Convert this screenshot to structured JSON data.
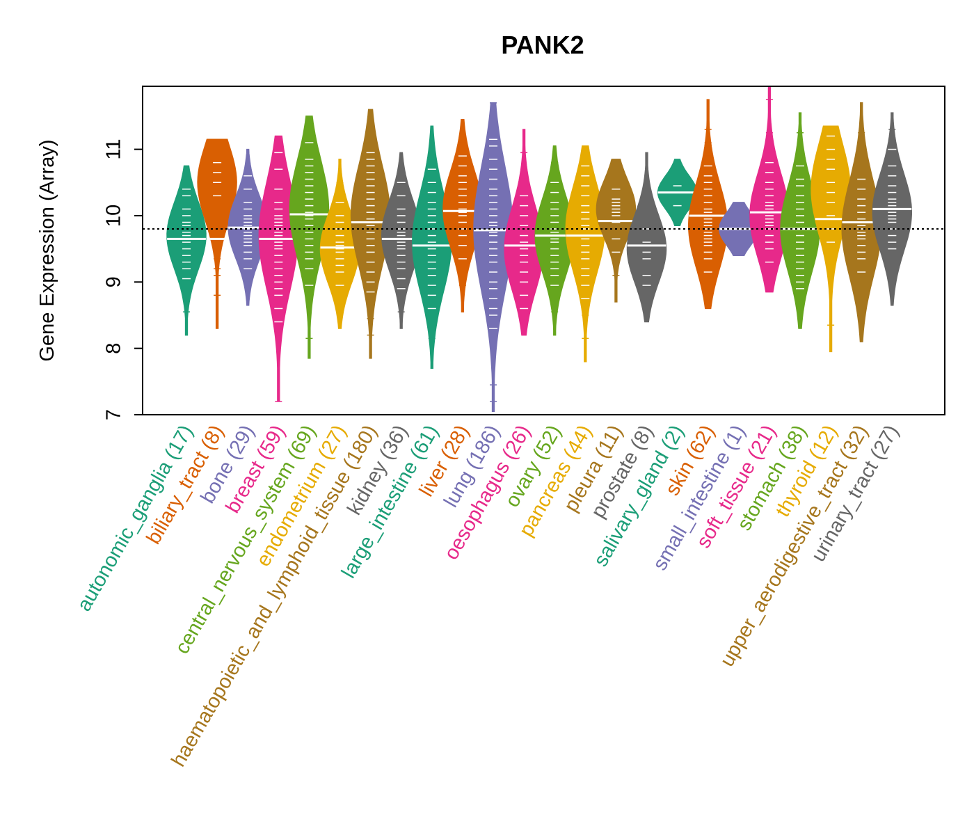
{
  "chart_data": {
    "type": "beanplot",
    "title": "PANK2",
    "ylabel": "Gene Expression (Array)",
    "xlabel": "",
    "ylim": [
      7,
      11.95
    ],
    "yticks": [
      7,
      8,
      9,
      10,
      11
    ],
    "reference_line": 9.8,
    "categories": [
      {
        "name": "autonomic_ganglia",
        "n": 17,
        "color": "#1B9E77",
        "min": 8.2,
        "max": 10.75,
        "median": 9.65,
        "mode": 9.7,
        "marks": [
          8.55,
          9.05,
          9.2,
          9.3,
          9.4,
          9.5,
          9.6,
          9.65,
          9.7,
          9.75,
          9.85,
          9.9,
          10.0,
          10.1,
          10.3,
          10.4,
          10.6
        ]
      },
      {
        "name": "biliary_tract",
        "n": 8,
        "color": "#D95F02",
        "min": 8.3,
        "max": 11.15,
        "median": 9.65,
        "mode": 10.5,
        "marks": [
          8.8,
          9.1,
          9.2,
          9.35,
          10.3,
          10.5,
          10.65,
          10.8
        ]
      },
      {
        "name": "bone",
        "n": 29,
        "color": "#7570B3",
        "min": 8.65,
        "max": 11.0,
        "median": 9.82,
        "mode": 9.82,
        "marks": [
          9.0,
          9.2,
          9.35,
          9.45,
          9.55,
          9.6,
          9.65,
          9.7,
          9.75,
          9.8,
          9.85,
          9.9,
          9.95,
          10.0,
          10.1,
          10.2,
          10.4,
          10.6,
          10.7
        ]
      },
      {
        "name": "breast",
        "n": 59,
        "color": "#E7298A",
        "min": 7.2,
        "max": 11.2,
        "median": 9.65,
        "mode": 9.7,
        "marks": [
          7.2,
          8.3,
          8.4,
          8.6,
          8.8,
          8.9,
          9.0,
          9.1,
          9.2,
          9.3,
          9.4,
          9.5,
          9.55,
          9.6,
          9.65,
          9.7,
          9.75,
          9.8,
          9.85,
          9.9,
          9.95,
          10.0,
          10.1,
          10.2,
          10.4,
          10.7,
          10.95
        ]
      },
      {
        "name": "central_nervous_system",
        "n": 69,
        "color": "#66A61E",
        "min": 7.85,
        "max": 11.5,
        "median": 10.02,
        "mode": 10.1,
        "marks": [
          8.15,
          8.95,
          9.2,
          9.35,
          9.45,
          9.55,
          9.65,
          9.75,
          9.85,
          9.95,
          10.0,
          10.05,
          10.15,
          10.25,
          10.35,
          10.45,
          10.55,
          10.65,
          10.75,
          10.85,
          11.1
        ]
      },
      {
        "name": "endometrium",
        "n": 27,
        "color": "#E6AB02",
        "min": 8.3,
        "max": 10.85,
        "median": 9.52,
        "mode": 9.5,
        "marks": [
          8.65,
          8.95,
          9.15,
          9.25,
          9.35,
          9.45,
          9.5,
          9.55,
          9.6,
          9.7,
          9.8,
          9.9,
          10.0,
          10.2,
          10.5
        ]
      },
      {
        "name": "haematopoietic_and_lymphoid_tissue",
        "n": 180,
        "color": "#A6761D",
        "min": 7.85,
        "max": 11.6,
        "median": 9.9,
        "mode": 10.0,
        "marks": [
          8.2,
          8.45,
          8.65,
          8.85,
          9.0,
          9.15,
          9.3,
          9.45,
          9.55,
          9.65,
          9.75,
          9.85,
          9.9,
          9.95,
          10.05,
          10.15,
          10.25,
          10.35,
          10.45,
          10.55,
          10.65,
          10.75,
          10.85,
          10.95,
          11.25
        ]
      },
      {
        "name": "kidney",
        "n": 36,
        "color": "#666666",
        "min": 8.3,
        "max": 10.95,
        "median": 9.65,
        "mode": 9.7,
        "marks": [
          8.55,
          8.9,
          9.05,
          9.2,
          9.3,
          9.4,
          9.5,
          9.55,
          9.6,
          9.65,
          9.7,
          9.75,
          9.8,
          9.9,
          10.0,
          10.1,
          10.3,
          10.5,
          10.7
        ]
      },
      {
        "name": "large_intestine",
        "n": 61,
        "color": "#1B9E77",
        "min": 7.7,
        "max": 11.35,
        "median": 9.55,
        "mode": 9.6,
        "marks": [
          8.15,
          8.6,
          8.8,
          8.95,
          9.1,
          9.2,
          9.3,
          9.4,
          9.5,
          9.55,
          9.6,
          9.7,
          9.8,
          9.9,
          10.0,
          10.1,
          10.2,
          10.35,
          10.5,
          10.7,
          10.85
        ]
      },
      {
        "name": "liver",
        "n": 28,
        "color": "#D95F02",
        "min": 8.55,
        "max": 11.45,
        "median": 10.07,
        "mode": 10.1,
        "marks": [
          8.95,
          9.35,
          9.55,
          9.7,
          9.8,
          9.9,
          10.0,
          10.05,
          10.1,
          10.2,
          10.3,
          10.4,
          10.5,
          10.6,
          10.75,
          10.9,
          11.1
        ]
      },
      {
        "name": "lung",
        "n": 186,
        "color": "#7570B3",
        "min": 7.05,
        "max": 11.7,
        "median": 9.78,
        "mode": 9.8,
        "marks": [
          7.2,
          7.45,
          8.3,
          8.5,
          8.6,
          8.75,
          8.9,
          9.0,
          9.15,
          9.3,
          9.4,
          9.5,
          9.6,
          9.7,
          9.75,
          9.8,
          9.85,
          9.9,
          10.0,
          10.1,
          10.2,
          10.3,
          10.4,
          10.55,
          10.7,
          10.85,
          11.05,
          11.15,
          11.7
        ]
      },
      {
        "name": "oesophagus",
        "n": 26,
        "color": "#E7298A",
        "min": 8.2,
        "max": 11.3,
        "median": 9.55,
        "mode": 9.5,
        "marks": [
          8.6,
          8.8,
          9.0,
          9.15,
          9.3,
          9.4,
          9.5,
          9.55,
          9.6,
          9.7,
          9.85,
          10.0,
          10.15,
          10.3,
          10.55,
          10.95
        ]
      },
      {
        "name": "ovary",
        "n": 52,
        "color": "#66A61E",
        "min": 8.2,
        "max": 11.05,
        "median": 9.7,
        "mode": 9.7,
        "marks": [
          8.55,
          8.75,
          8.95,
          9.1,
          9.2,
          9.3,
          9.4,
          9.5,
          9.6,
          9.65,
          9.7,
          9.75,
          9.8,
          9.9,
          10.0,
          10.1,
          10.2,
          10.35,
          10.5,
          10.65,
          10.8
        ]
      },
      {
        "name": "pancreas",
        "n": 44,
        "color": "#E6AB02",
        "min": 7.8,
        "max": 11.05,
        "median": 9.7,
        "mode": 9.8,
        "marks": [
          8.15,
          8.5,
          8.75,
          8.95,
          9.1,
          9.2,
          9.35,
          9.45,
          9.55,
          9.65,
          9.7,
          9.8,
          9.85,
          9.95,
          10.05,
          10.15,
          10.3,
          10.45,
          10.6,
          10.75
        ]
      },
      {
        "name": "pleura",
        "n": 11,
        "color": "#A6761D",
        "min": 8.7,
        "max": 10.85,
        "median": 9.92,
        "mode": 10.1,
        "marks": [
          9.1,
          9.45,
          9.65,
          9.9,
          10.0,
          10.05,
          10.1,
          10.15,
          10.2,
          10.25,
          10.4
        ]
      },
      {
        "name": "prostate",
        "n": 8,
        "color": "#666666",
        "min": 8.4,
        "max": 10.95,
        "median": 9.55,
        "mode": 9.5,
        "marks": [
          8.95,
          9.1,
          9.35,
          9.45,
          9.55,
          9.6,
          9.8,
          10.4
        ]
      },
      {
        "name": "salivary_gland",
        "n": 2,
        "color": "#1B9E77",
        "min": 9.85,
        "max": 10.85,
        "median": 10.35,
        "mode": 10.35,
        "marks": [
          10.15,
          10.45
        ]
      },
      {
        "name": "skin",
        "n": 62,
        "color": "#D95F02",
        "min": 8.6,
        "max": 11.75,
        "median": 10.0,
        "mode": 9.85,
        "marks": [
          9.15,
          9.35,
          9.45,
          9.55,
          9.6,
          9.65,
          9.7,
          9.75,
          9.8,
          9.85,
          9.9,
          9.95,
          10.0,
          10.05,
          10.1,
          10.2,
          10.3,
          10.4,
          10.5,
          10.6,
          10.75,
          10.9,
          11.1,
          11.3
        ]
      },
      {
        "name": "small_intestine",
        "n": 1,
        "color": "#7570B3",
        "min": 9.4,
        "max": 10.2,
        "median": 9.8,
        "mode": 9.8,
        "marks": [
          9.8
        ]
      },
      {
        "name": "soft_tissue",
        "n": 21,
        "color": "#E7298A",
        "min": 8.85,
        "max": 11.95,
        "median": 10.05,
        "mode": 10.0,
        "marks": [
          9.3,
          9.5,
          9.6,
          9.7,
          9.8,
          9.85,
          9.9,
          9.95,
          10.0,
          10.05,
          10.1,
          10.15,
          10.2,
          10.3,
          10.4,
          10.5,
          10.65,
          10.8,
          11.25,
          11.75
        ]
      },
      {
        "name": "stomach",
        "n": 38,
        "color": "#66A61E",
        "min": 8.3,
        "max": 11.55,
        "median": 9.8,
        "mode": 9.8,
        "marks": [
          8.6,
          8.9,
          9.0,
          9.1,
          9.2,
          9.3,
          9.4,
          9.5,
          9.6,
          9.7,
          9.8,
          9.9,
          10.0,
          10.1,
          10.2,
          10.3,
          10.45,
          10.55,
          10.75,
          11.25
        ]
      },
      {
        "name": "thyroid",
        "n": 12,
        "color": "#E6AB02",
        "min": 7.95,
        "max": 11.35,
        "median": 9.95,
        "mode": 10.4,
        "marks": [
          8.35,
          9.25,
          9.6,
          9.8,
          10.0,
          10.2,
          10.35,
          10.5,
          10.7,
          10.85,
          11.0,
          11.2
        ]
      },
      {
        "name": "upper_aerodigestive_tract",
        "n": 32,
        "color": "#A6761D",
        "min": 8.1,
        "max": 11.7,
        "median": 9.9,
        "mode": 9.8,
        "marks": [
          8.5,
          9.15,
          9.35,
          9.45,
          9.55,
          9.65,
          9.7,
          9.75,
          9.8,
          9.85,
          9.9,
          9.95,
          10.05,
          10.15,
          10.25,
          10.4,
          10.55,
          11.25
        ]
      },
      {
        "name": "urinary_tract",
        "n": 27,
        "color": "#666666",
        "min": 8.65,
        "max": 11.55,
        "median": 10.1,
        "mode": 10.05,
        "marks": [
          8.95,
          9.5,
          9.6,
          9.7,
          9.8,
          9.9,
          9.95,
          10.0,
          10.05,
          10.1,
          10.15,
          10.2,
          10.25,
          10.35,
          10.45,
          10.6,
          10.75,
          11.0,
          11.3
        ]
      }
    ]
  }
}
